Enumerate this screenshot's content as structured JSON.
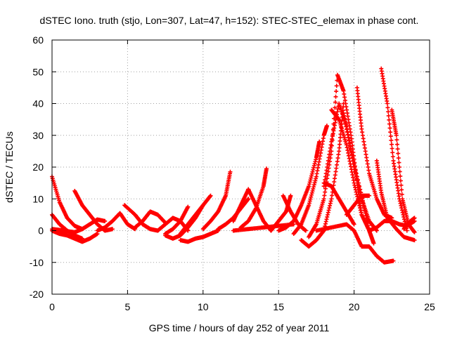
{
  "chart_data": {
    "type": "scatter",
    "title": "dSTEC Iono. truth (stjo, Lon=307, Lat=47, h=152): STEC-STEC_elemax in phase cont.",
    "xlabel": "GPS time / hours of day 252 of year 2011",
    "ylabel": "dSTEC  / TECUs",
    "xlim": [
      0,
      25
    ],
    "ylim": [
      -20,
      60
    ],
    "xticks": [
      "0",
      "5",
      "10",
      "15",
      "20",
      "25"
    ],
    "yticks": [
      "-20",
      "-10",
      "0",
      "10",
      "20",
      "30",
      "40",
      "50",
      "60"
    ],
    "grid": true,
    "marker": "plus",
    "series_color": "#ff0000",
    "tracks": [
      [
        [
          0,
          17
        ],
        [
          0.5,
          9
        ],
        [
          1,
          4
        ],
        [
          1.5,
          1.5
        ],
        [
          2,
          0.5
        ]
      ],
      [
        [
          0,
          5
        ],
        [
          0.5,
          2
        ],
        [
          1,
          0
        ],
        [
          1.5,
          -1.5
        ],
        [
          2,
          -2.5
        ]
      ],
      [
        [
          0,
          0
        ],
        [
          0.5,
          -1
        ],
        [
          1,
          -1.5
        ],
        [
          1.5,
          -2.5
        ],
        [
          2,
          -3.5
        ],
        [
          2.5,
          -2.5
        ],
        [
          3,
          -1
        ]
      ],
      [
        [
          0,
          0.5
        ],
        [
          0.5,
          0.2
        ],
        [
          1,
          -0.2
        ],
        [
          1.5,
          -0.5
        ],
        [
          2,
          0.5
        ],
        [
          2.5,
          2
        ],
        [
          3,
          3.5
        ],
        [
          3.5,
          3
        ]
      ],
      [
        [
          1.5,
          12.5
        ],
        [
          2,
          8
        ],
        [
          2.5,
          5
        ],
        [
          3,
          2
        ],
        [
          3.5,
          0
        ],
        [
          4,
          0.5
        ]
      ],
      [
        [
          3,
          0
        ],
        [
          3.5,
          1
        ],
        [
          4,
          3
        ],
        [
          4.5,
          5.5
        ],
        [
          5,
          2
        ],
        [
          5.5,
          0.5
        ]
      ],
      [
        [
          4.8,
          8
        ],
        [
          5.5,
          5
        ],
        [
          6,
          2
        ],
        [
          6.5,
          0.5
        ],
        [
          7,
          0
        ]
      ],
      [
        [
          5.5,
          1
        ],
        [
          6,
          3
        ],
        [
          6.5,
          6
        ],
        [
          7,
          5
        ],
        [
          7.5,
          2.5
        ]
      ],
      [
        [
          7,
          0
        ],
        [
          7.5,
          2
        ],
        [
          8,
          4
        ],
        [
          8.5,
          3
        ],
        [
          9,
          0
        ]
      ],
      [
        [
          7.5,
          -1
        ],
        [
          8,
          0.5
        ],
        [
          8.5,
          3
        ],
        [
          9,
          7.5
        ]
      ],
      [
        [
          7.5,
          -1.5
        ],
        [
          8,
          -2.5
        ],
        [
          8.5,
          -1.5
        ],
        [
          9,
          1
        ],
        [
          9.5,
          4
        ],
        [
          10,
          8
        ]
      ],
      [
        [
          8.5,
          -1
        ],
        [
          9,
          2
        ],
        [
          9.5,
          5
        ],
        [
          10,
          8
        ],
        [
          10.5,
          11
        ]
      ],
      [
        [
          8.5,
          -3
        ],
        [
          9,
          -3.5
        ],
        [
          9.5,
          -2.5
        ],
        [
          10,
          -2
        ],
        [
          10.5,
          -1
        ],
        [
          11,
          0
        ]
      ],
      [
        [
          10,
          0.5
        ],
        [
          10.5,
          3
        ],
        [
          11,
          6
        ],
        [
          11.5,
          11
        ],
        [
          11.8,
          18.5
        ]
      ],
      [
        [
          11,
          0.5
        ],
        [
          11.5,
          2
        ],
        [
          12,
          4
        ],
        [
          12.5,
          7
        ],
        [
          13,
          10
        ]
      ],
      [
        [
          12,
          3
        ],
        [
          12.5,
          8
        ],
        [
          13,
          13
        ]
      ],
      [
        [
          12.5,
          1
        ],
        [
          13,
          3
        ],
        [
          13.5,
          7
        ],
        [
          14,
          14
        ],
        [
          14.2,
          19.5
        ]
      ],
      [
        [
          13,
          13
        ],
        [
          13.5,
          8
        ],
        [
          14,
          3
        ],
        [
          14.5,
          0
        ]
      ],
      [
        [
          12,
          0
        ],
        [
          13,
          0.5
        ],
        [
          14,
          1
        ],
        [
          15,
          1.5
        ],
        [
          16,
          2
        ]
      ],
      [
        [
          14.5,
          0
        ],
        [
          15,
          3
        ],
        [
          15.5,
          6
        ],
        [
          15.8,
          11
        ]
      ],
      [
        [
          15.3,
          11
        ],
        [
          15.8,
          6
        ],
        [
          16.3,
          2
        ],
        [
          16.8,
          0
        ]
      ],
      [
        [
          15,
          0
        ],
        [
          15.5,
          1
        ],
        [
          16,
          3
        ],
        [
          16.5,
          8
        ],
        [
          17,
          14
        ],
        [
          17.5,
          23
        ],
        [
          17.7,
          28
        ]
      ],
      [
        [
          16,
          -1
        ],
        [
          16.5,
          2
        ],
        [
          17,
          8
        ],
        [
          17.5,
          17
        ],
        [
          18,
          30
        ],
        [
          18.2,
          33
        ]
      ],
      [
        [
          16.5,
          -3
        ],
        [
          17,
          -5
        ],
        [
          17.5,
          -3
        ],
        [
          18,
          0
        ],
        [
          18.5,
          10
        ],
        [
          19,
          25
        ],
        [
          19.3,
          40
        ]
      ],
      [
        [
          17,
          -2
        ],
        [
          17.5,
          2
        ],
        [
          18,
          10
        ],
        [
          18.5,
          25
        ],
        [
          18.9,
          49
        ],
        [
          19.3,
          44
        ],
        [
          19.8,
          30
        ],
        [
          20.2,
          15
        ],
        [
          20.5,
          5
        ]
      ],
      [
        [
          18,
          14
        ],
        [
          18.5,
          28
        ],
        [
          19,
          40
        ],
        [
          19.5,
          33
        ],
        [
          20,
          20
        ],
        [
          20.5,
          10
        ],
        [
          21,
          3
        ],
        [
          21.5,
          0
        ]
      ],
      [
        [
          18.5,
          38
        ],
        [
          19,
          35
        ],
        [
          19.5,
          27
        ],
        [
          20,
          15
        ],
        [
          20.5,
          5
        ],
        [
          21,
          0
        ],
        [
          21.5,
          1
        ],
        [
          22,
          3
        ],
        [
          22.5,
          3
        ],
        [
          23,
          2
        ],
        [
          23.5,
          1.5
        ],
        [
          24,
          3
        ]
      ],
      [
        [
          19.3,
          37
        ],
        [
          19.8,
          25
        ],
        [
          20.5,
          11
        ],
        [
          21,
          0
        ],
        [
          21.3,
          -4
        ]
      ],
      [
        [
          17.5,
          0
        ],
        [
          18.5,
          1
        ],
        [
          19.5,
          2
        ],
        [
          20,
          0
        ],
        [
          20.5,
          -5
        ],
        [
          21,
          -5
        ],
        [
          21.5,
          -8
        ],
        [
          22,
          -10
        ],
        [
          22.6,
          -9.5
        ]
      ],
      [
        [
          18,
          15
        ],
        [
          18.5,
          14
        ],
        [
          19,
          10
        ],
        [
          19.5,
          6
        ],
        [
          20,
          2
        ]
      ],
      [
        [
          19.5,
          5
        ],
        [
          20,
          8
        ],
        [
          20.5,
          11
        ],
        [
          21,
          11
        ]
      ],
      [
        [
          20.2,
          45
        ],
        [
          20.5,
          32
        ],
        [
          21,
          18
        ],
        [
          21.5,
          10
        ],
        [
          22,
          5
        ],
        [
          22.5,
          4
        ]
      ],
      [
        [
          21.8,
          51
        ],
        [
          22.2,
          40
        ],
        [
          22.6,
          22
        ],
        [
          23,
          10
        ],
        [
          23.5,
          0
        ]
      ],
      [
        [
          22.5,
          38
        ],
        [
          22.8,
          30
        ],
        [
          23.2,
          10
        ],
        [
          23.6,
          2
        ],
        [
          24,
          -0.5
        ]
      ],
      [
        [
          21.5,
          22
        ],
        [
          21.8,
          12
        ],
        [
          22.2,
          4
        ],
        [
          22.8,
          0.5
        ],
        [
          23.3,
          -2
        ],
        [
          24,
          -3
        ]
      ],
      [
        [
          23.3,
          0.5
        ],
        [
          23.6,
          2.5
        ],
        [
          24,
          4
        ]
      ]
    ]
  }
}
